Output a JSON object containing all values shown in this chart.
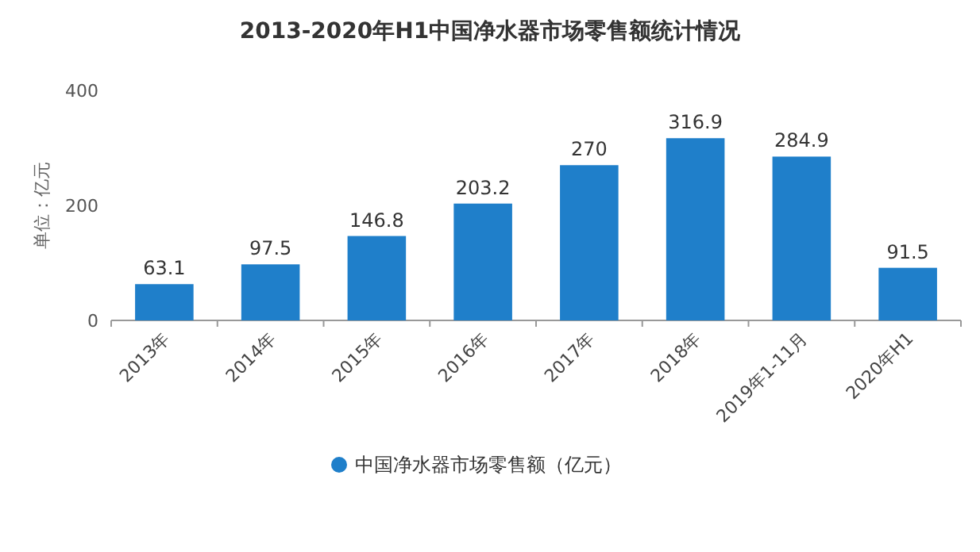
{
  "chart_data": {
    "type": "bar",
    "title": "2013-2020年H1中国净水器市场零售额统计情况",
    "ylabel": "单位：亿元",
    "categories": [
      "2013年",
      "2014年",
      "2015年",
      "2016年",
      "2017年",
      "2018年",
      "2019年1-11月",
      "2020年H1"
    ],
    "series": [
      {
        "name": "中国净水器市场零售额（亿元）",
        "color": "#1f7fca",
        "values": [
          63.1,
          97.5,
          146.8,
          203.2,
          270,
          316.9,
          284.9,
          91.5
        ]
      }
    ],
    "ylim": [
      0,
      400
    ],
    "yticks": [
      0,
      200,
      400
    ],
    "data_labels": true,
    "legend": "bottom",
    "grid": false
  }
}
